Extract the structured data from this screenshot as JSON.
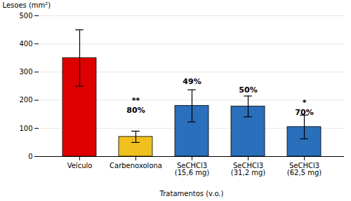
{
  "chart_data": {
    "type": "bar",
    "categories": [
      "Veículo",
      "Carbenoxolona",
      "SeCHCl3\n(15,6 mg)",
      "SeCHCl3\n(31,2 mg)",
      "SeCHCl3\n(62,5 mg)"
    ],
    "values": [
      350,
      70,
      180,
      178,
      105
    ],
    "errors": [
      100,
      20,
      57,
      37,
      42
    ],
    "colors": [
      "#dd0000",
      "#f0c020",
      "#2a6fbb",
      "#2a6fbb",
      "#2a6fbb"
    ],
    "xlabel": "Tratamentos (v.o.)",
    "ylabel": "Lesoes (mm²)",
    "ylim": [
      0,
      500
    ],
    "yticks": [
      0,
      100,
      200,
      300,
      400,
      500
    ],
    "grid": true,
    "annotations": [
      {
        "text": "**",
        "category": "Carbenoxolona",
        "y": 175
      },
      {
        "text": "80%",
        "category": "Carbenoxolona",
        "y": 155
      },
      {
        "text": "49%",
        "category": "SeCHCl3\n(15,6 mg)",
        "y": 258
      },
      {
        "text": "50%",
        "category": "SeCHCl3\n(31,2 mg)",
        "y": 228
      },
      {
        "text": "*",
        "category": "SeCHCl3\n(62,5 mg)",
        "y": 160
      },
      {
        "text": "70%",
        "category": "SeCHCl3\n(62,5 mg)",
        "y": 148
      }
    ]
  }
}
